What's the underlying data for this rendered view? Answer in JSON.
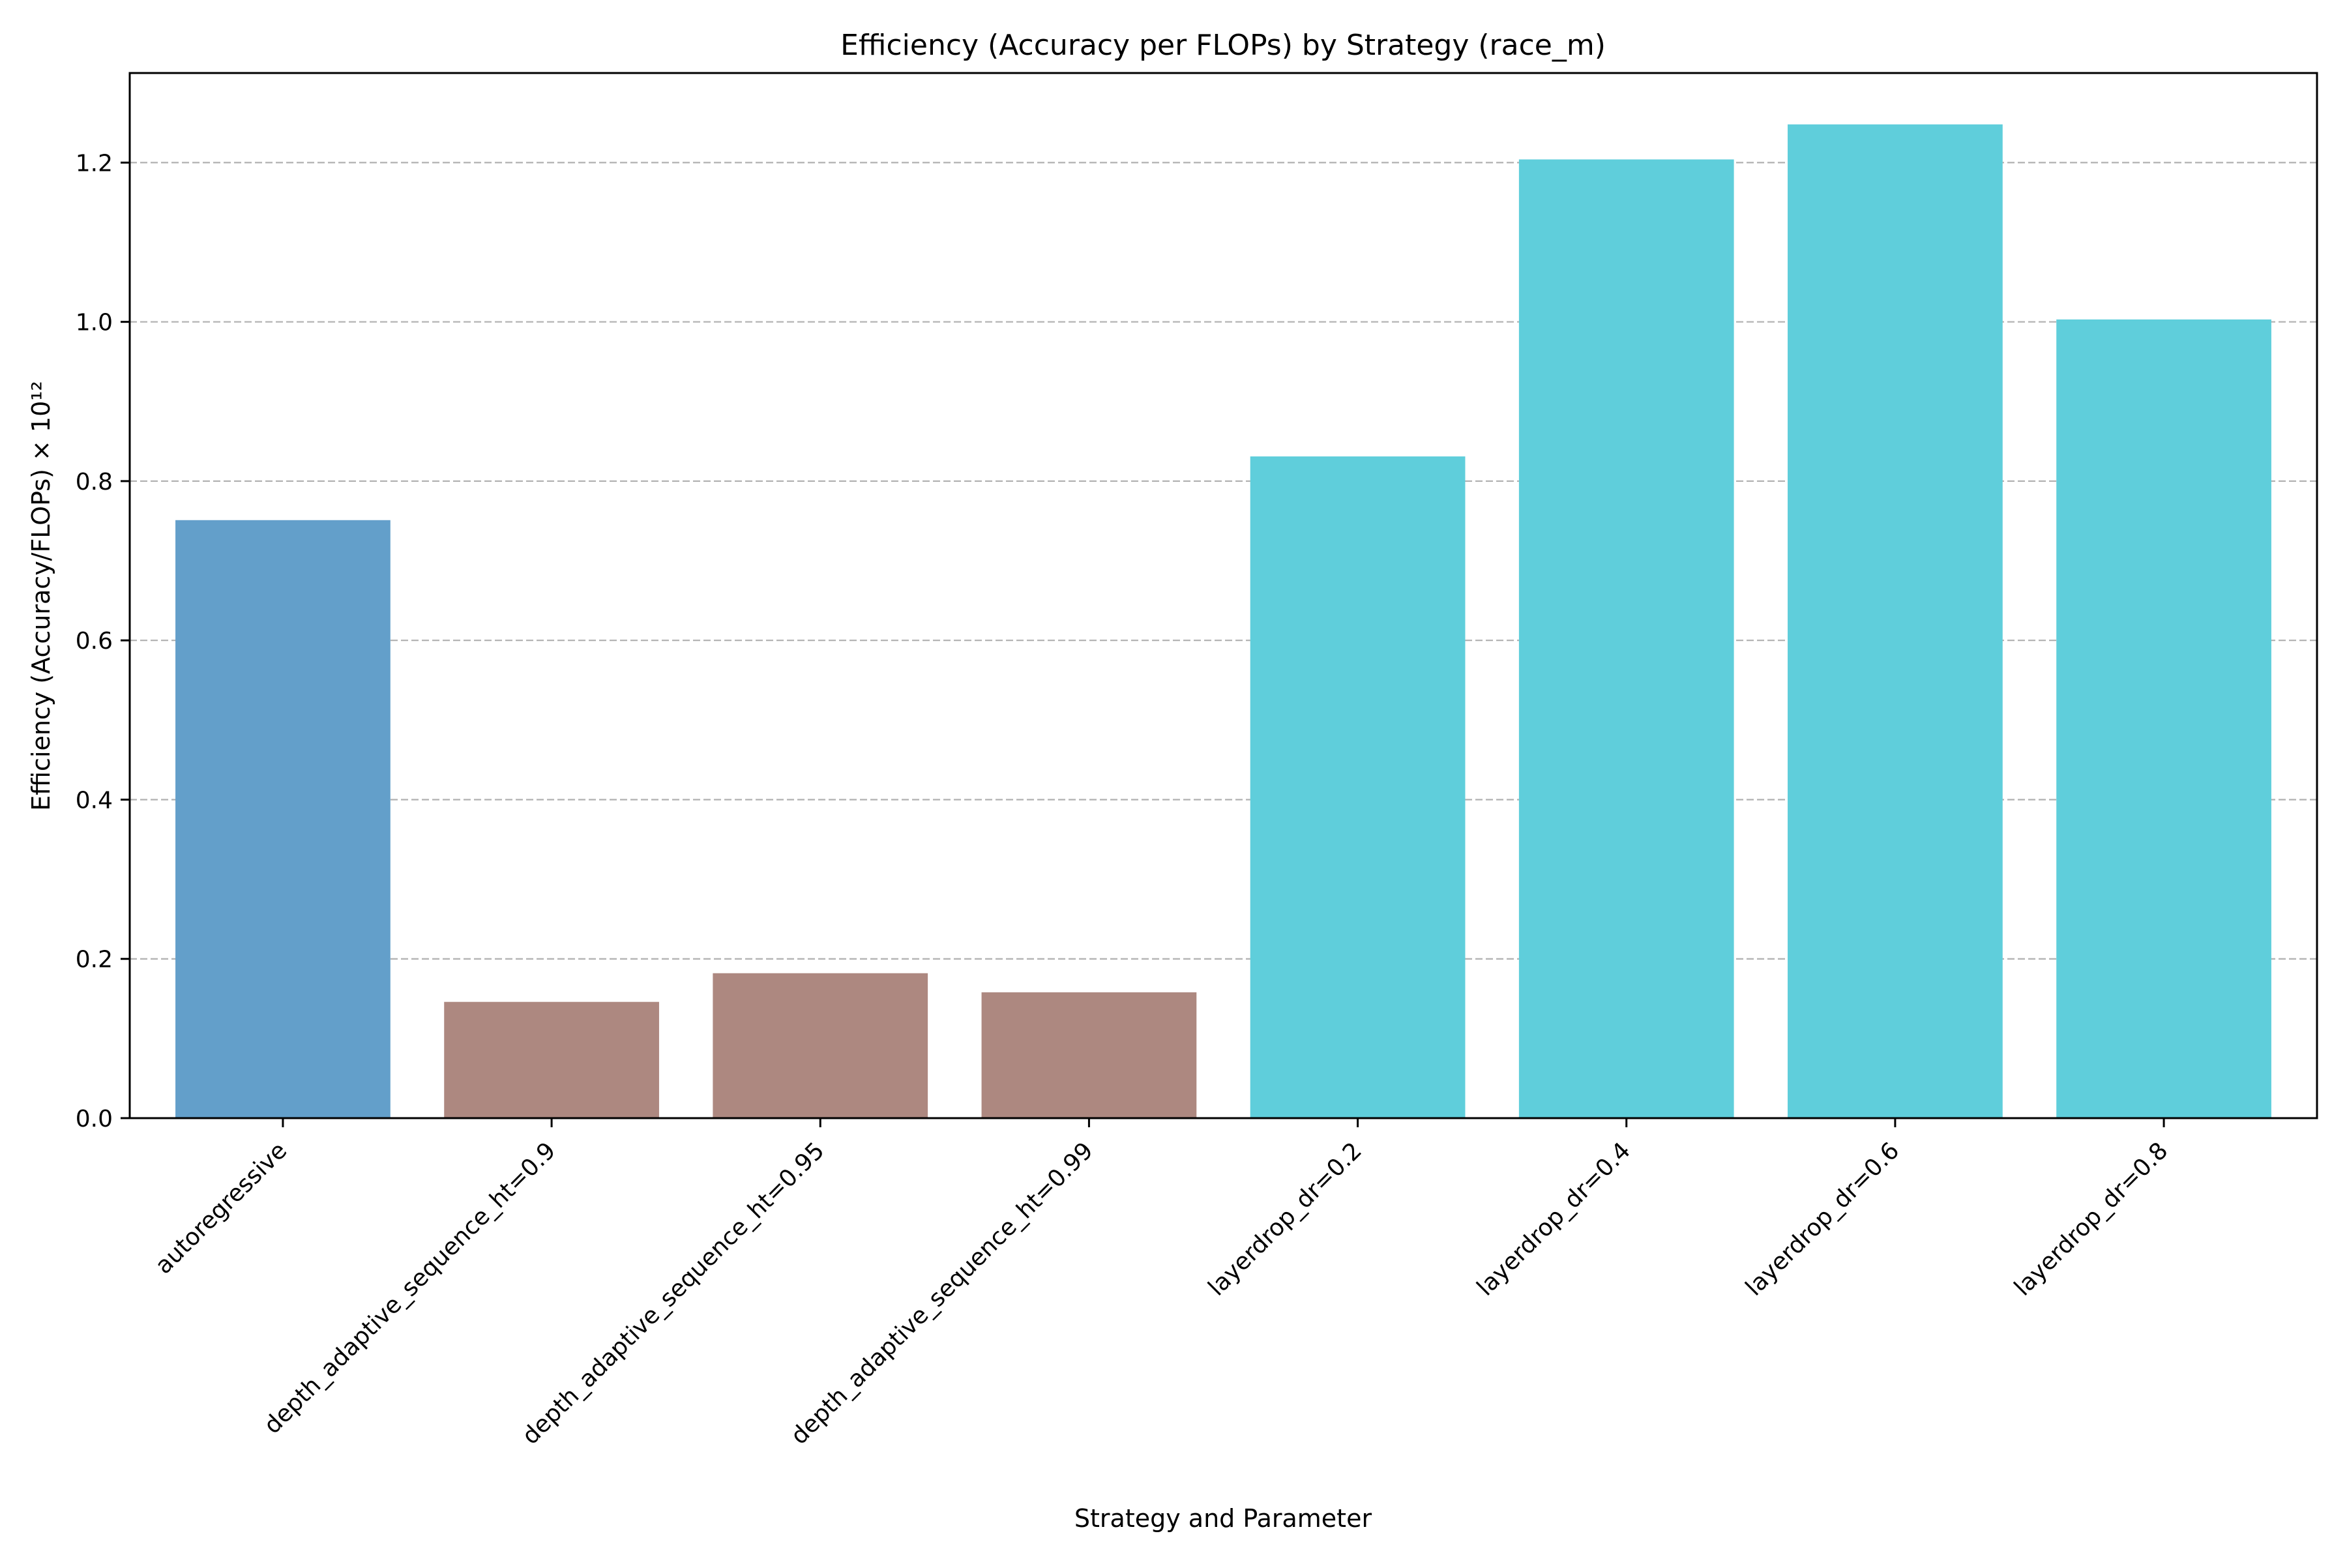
{
  "chart_data": {
    "type": "bar",
    "title": "Efficiency (Accuracy per FLOPs) by Strategy (race_m)",
    "xlabel": "Strategy and Parameter",
    "ylabel": "Efficiency (Accuracy/FLOPs) × 10¹²",
    "ylim": [
      0,
      1.3125
    ],
    "yticks": [
      0.0,
      0.2,
      0.4,
      0.6,
      0.8,
      1.0,
      1.2
    ],
    "ytick_labels": [
      "0.0",
      "0.2",
      "0.4",
      "0.6",
      "0.8",
      "1.0",
      "1.2"
    ],
    "grid": "y-dashed",
    "categories": [
      "autoregressive",
      "depth_adaptive_sequence_ht=0.9",
      "depth_adaptive_sequence_ht=0.95",
      "depth_adaptive_sequence_ht=0.99",
      "layerdrop_dr=0.2",
      "layerdrop_dr=0.4",
      "layerdrop_dr=0.6",
      "layerdrop_dr=0.8"
    ],
    "values": [
      0.751,
      0.146,
      0.182,
      0.158,
      0.831,
      1.204,
      1.248,
      1.003
    ],
    "colors": [
      "#639fca",
      "#ad8880",
      "#ad8880",
      "#ad8880",
      "#5fcedb",
      "#5fcedb",
      "#5fcedb",
      "#5fcedb"
    ]
  }
}
